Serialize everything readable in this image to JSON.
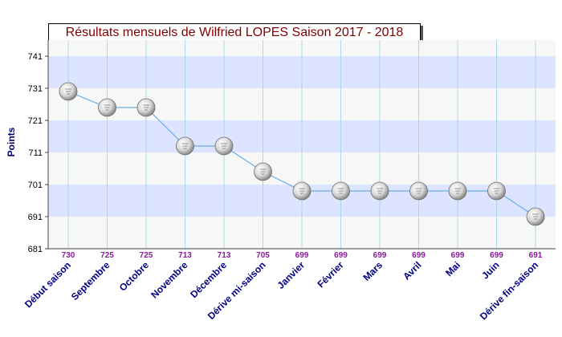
{
  "chart_data": {
    "type": "line",
    "title": "Résultats mensuels de Wilfried LOPES Saison 2017 - 2018",
    "ylabel": "Points",
    "xlabel": "",
    "categories": [
      "Début saison",
      "Septembre",
      "Octobre",
      "Novembre",
      "Décembre",
      "Dérive mi-saison",
      "Janvier",
      "Février",
      "Mars",
      "Avril",
      "Mai",
      "Juin",
      "Dérive fin-saison"
    ],
    "values": [
      730,
      725,
      725,
      713,
      713,
      705,
      699,
      699,
      699,
      699,
      699,
      699,
      691
    ],
    "ylim": [
      681,
      746
    ],
    "yticks": [
      681,
      691,
      701,
      711,
      721,
      731,
      741
    ],
    "grid": true,
    "value_labels": true,
    "colors": {
      "band_blue": "#dde4ff",
      "band_white": "#f7f7f7",
      "line": "#6aaee0",
      "vgrid": "#a8d8ea",
      "value_label": "#8a1b9c",
      "category_label": "#000080",
      "tick_label": "#000000"
    }
  }
}
